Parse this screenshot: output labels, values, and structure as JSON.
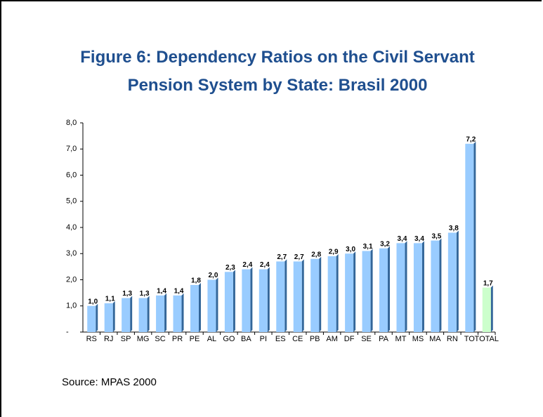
{
  "chart_data": {
    "type": "bar",
    "title": "Figure 6: Dependency Ratios on the Civil Servant Pension System by State: Brasil 2000",
    "source": "Source: MPAS 2000",
    "categories": [
      "RS",
      "RJ",
      "SP",
      "MG",
      "SC",
      "PR",
      "PE",
      "AL",
      "GO",
      "BA",
      "PI",
      "ES",
      "CE",
      "PB",
      "AM",
      "DF",
      "SE",
      "PA",
      "MT",
      "MS",
      "MA",
      "RN",
      "TO",
      "TOTAL"
    ],
    "values": [
      1.0,
      1.1,
      1.3,
      1.3,
      1.4,
      1.4,
      1.8,
      2.0,
      2.3,
      2.4,
      2.4,
      2.7,
      2.7,
      2.8,
      2.9,
      3.0,
      3.1,
      3.2,
      3.4,
      3.4,
      3.5,
      3.8,
      7.2,
      1.7
    ],
    "value_labels": [
      "1,0",
      "1,1",
      "1,3",
      "1,3",
      "1,4",
      "1,4",
      "1,8",
      "2,0",
      "2,3",
      "2,4",
      "2,4",
      "2,7",
      "2,7",
      "2,8",
      "2,9",
      "3,0",
      "3,1",
      "3,2",
      "3,4",
      "3,4",
      "3,5",
      "3,8",
      "7,2",
      "1,7"
    ],
    "colors": [
      "#99ccff",
      "#99ccff",
      "#99ccff",
      "#99ccff",
      "#99ccff",
      "#99ccff",
      "#99ccff",
      "#99ccff",
      "#99ccff",
      "#99ccff",
      "#99ccff",
      "#99ccff",
      "#99ccff",
      "#99ccff",
      "#99ccff",
      "#99ccff",
      "#99ccff",
      "#99ccff",
      "#99ccff",
      "#99ccff",
      "#99ccff",
      "#99ccff",
      "#99ccff",
      "#ccffcc"
    ],
    "ylim": [
      0,
      8
    ],
    "yticks": [
      {
        "value": 0,
        "label": "-"
      },
      {
        "value": 1,
        "label": "1,0"
      },
      {
        "value": 2,
        "label": "2,0"
      },
      {
        "value": 3,
        "label": "3,0"
      },
      {
        "value": 4,
        "label": "4,0"
      },
      {
        "value": 5,
        "label": "5,0"
      },
      {
        "value": 6,
        "label": "6,0"
      },
      {
        "value": 7,
        "label": "7,0"
      },
      {
        "value": 8,
        "label": "8,0"
      }
    ],
    "grid": false
  }
}
